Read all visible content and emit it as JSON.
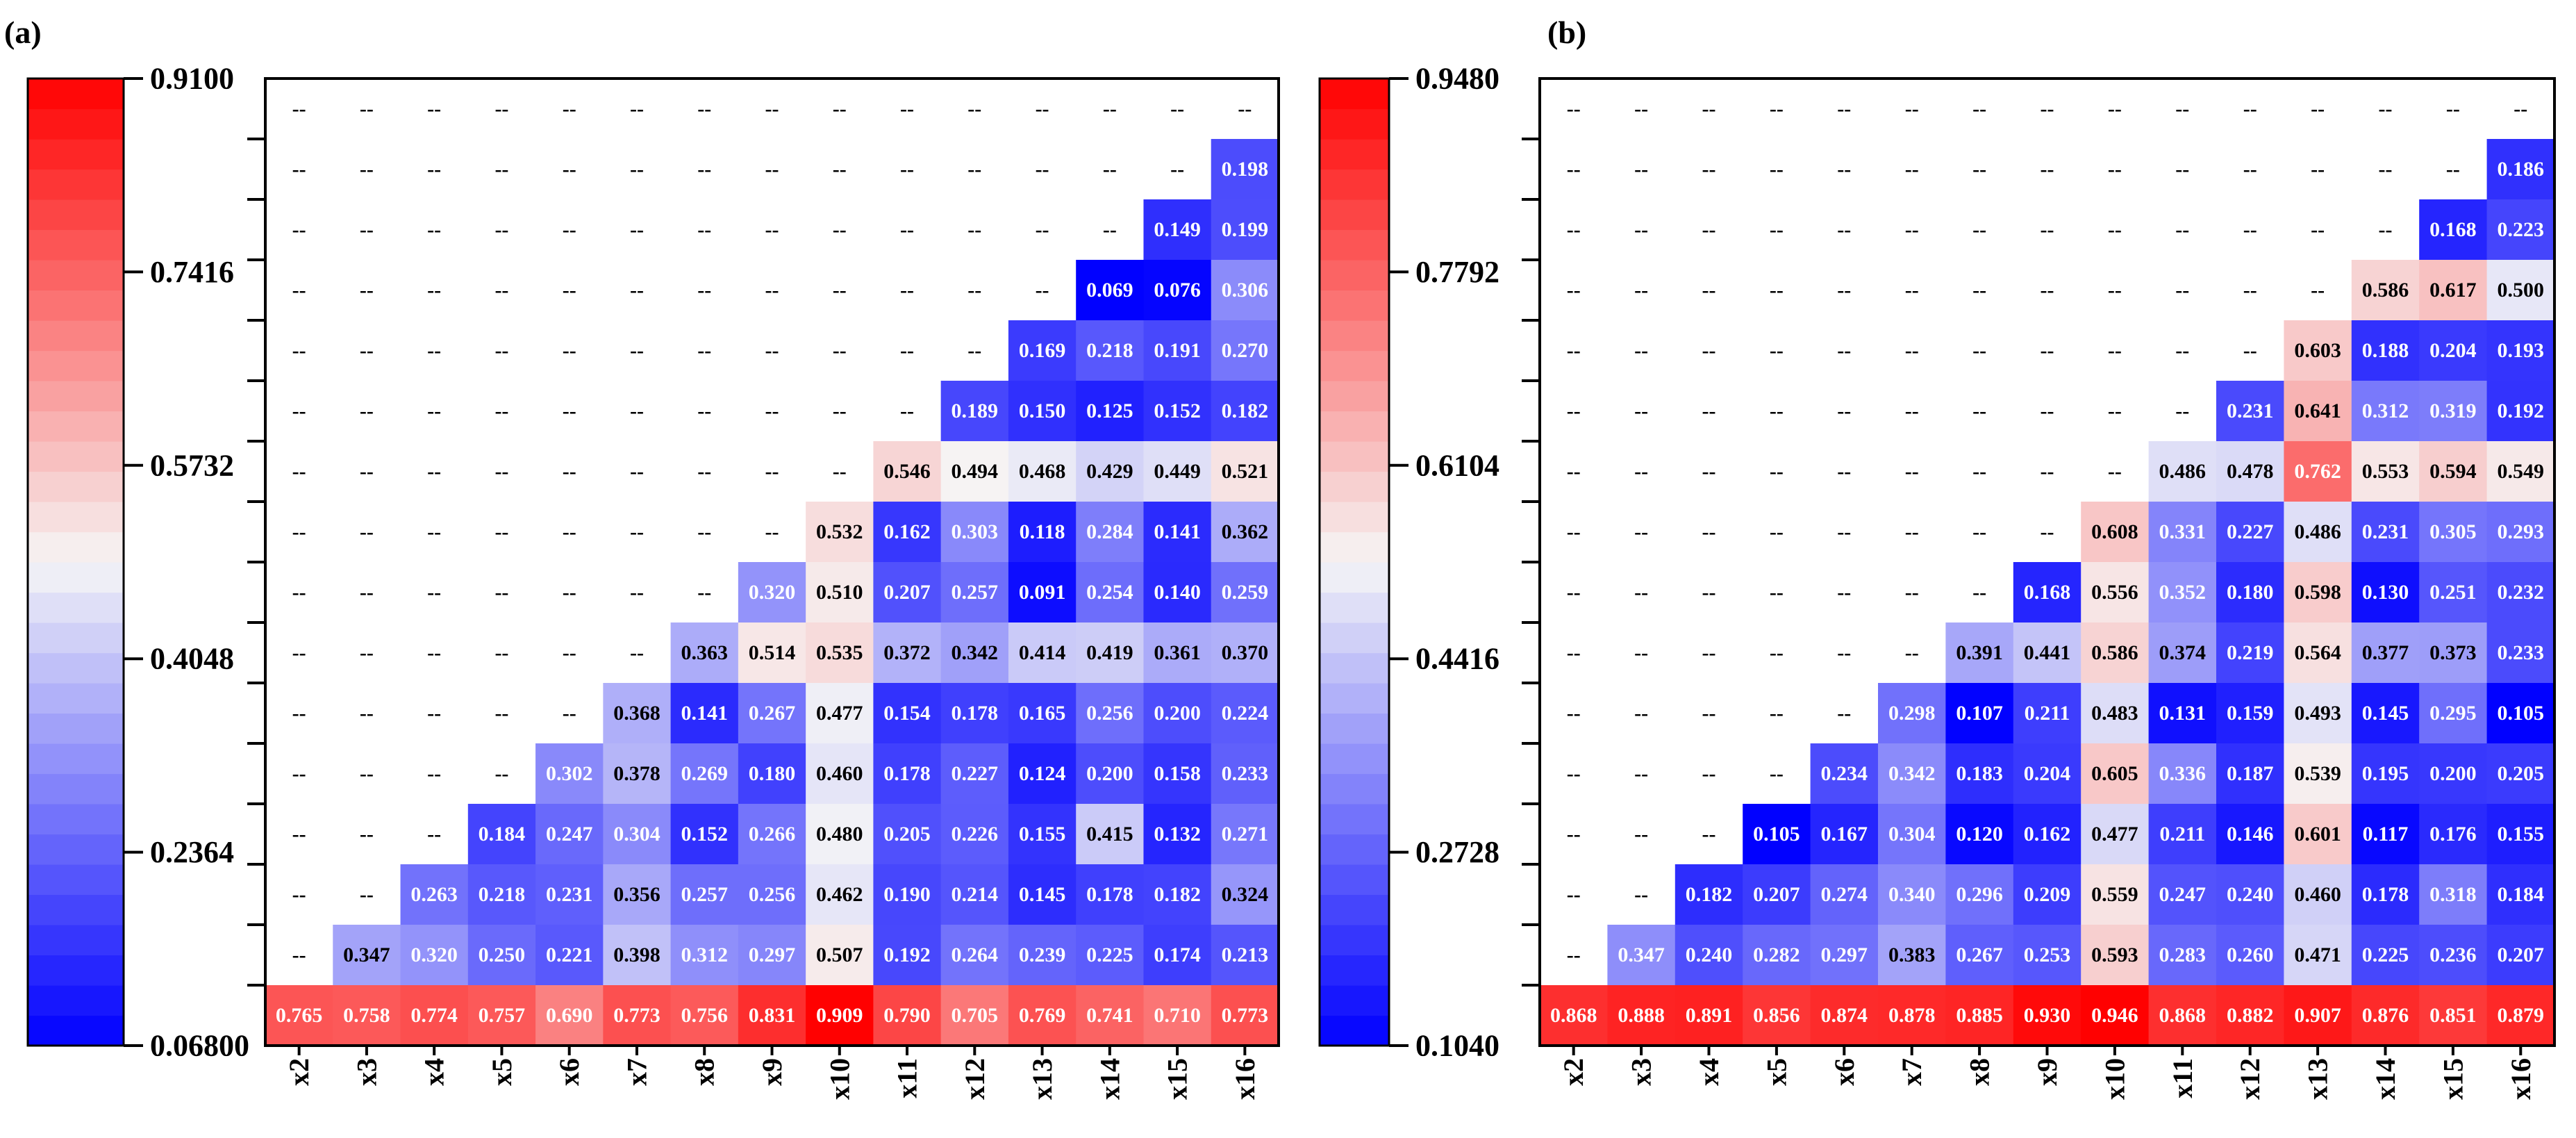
{
  "chart_data": [
    {
      "type": "heatmap",
      "panel_label": "(a)",
      "colorbar": {
        "min": 0.068,
        "max": 0.91,
        "ticks": [
          "0.06800",
          "0.2364",
          "0.4048",
          "0.5732",
          "0.7416",
          "0.9100"
        ]
      },
      "columns": [
        "x2",
        "x3",
        "x4",
        "x5",
        "x6",
        "x7",
        "x8",
        "x9",
        "x10",
        "x11",
        "x12",
        "x13",
        "x14",
        "x15",
        "x16"
      ],
      "rows": [
        [
          "--",
          "--",
          "--",
          "--",
          "--",
          "--",
          "--",
          "--",
          "--",
          "--",
          "--",
          "--",
          "--",
          "--",
          "--"
        ],
        [
          "--",
          "--",
          "--",
          "--",
          "--",
          "--",
          "--",
          "--",
          "--",
          "--",
          "--",
          "--",
          "--",
          "--",
          "0.198"
        ],
        [
          "--",
          "--",
          "--",
          "--",
          "--",
          "--",
          "--",
          "--",
          "--",
          "--",
          "--",
          "--",
          "--",
          "0.149",
          "0.199"
        ],
        [
          "--",
          "--",
          "--",
          "--",
          "--",
          "--",
          "--",
          "--",
          "--",
          "--",
          "--",
          "--",
          "0.069",
          "0.076",
          "0.306"
        ],
        [
          "--",
          "--",
          "--",
          "--",
          "--",
          "--",
          "--",
          "--",
          "--",
          "--",
          "--",
          "0.169",
          "0.218",
          "0.191",
          "0.270"
        ],
        [
          "--",
          "--",
          "--",
          "--",
          "--",
          "--",
          "--",
          "--",
          "--",
          "--",
          "0.189",
          "0.150",
          "0.125",
          "0.152",
          "0.182"
        ],
        [
          "--",
          "--",
          "--",
          "--",
          "--",
          "--",
          "--",
          "--",
          "--",
          "0.546",
          "0.494",
          "0.468",
          "0.429",
          "0.449",
          "0.521"
        ],
        [
          "--",
          "--",
          "--",
          "--",
          "--",
          "--",
          "--",
          "--",
          "0.532",
          "0.162",
          "0.303",
          "0.118",
          "0.284",
          "0.141",
          "0.362"
        ],
        [
          "--",
          "--",
          "--",
          "--",
          "--",
          "--",
          "--",
          "0.320",
          "0.510",
          "0.207",
          "0.257",
          "0.091",
          "0.254",
          "0.140",
          "0.259"
        ],
        [
          "--",
          "--",
          "--",
          "--",
          "--",
          "--",
          "0.363",
          "0.514",
          "0.535",
          "0.372",
          "0.342",
          "0.414",
          "0.419",
          "0.361",
          "0.370"
        ],
        [
          "--",
          "--",
          "--",
          "--",
          "--",
          "0.368",
          "0.141",
          "0.267",
          "0.477",
          "0.154",
          "0.178",
          "0.165",
          "0.256",
          "0.200",
          "0.224"
        ],
        [
          "--",
          "--",
          "--",
          "--",
          "0.302",
          "0.378",
          "0.269",
          "0.180",
          "0.460",
          "0.178",
          "0.227",
          "0.124",
          "0.200",
          "0.158",
          "0.233"
        ],
        [
          "--",
          "--",
          "--",
          "0.184",
          "0.247",
          "0.304",
          "0.152",
          "0.266",
          "0.480",
          "0.205",
          "0.226",
          "0.155",
          "0.415",
          "0.132",
          "0.271"
        ],
        [
          "--",
          "--",
          "0.263",
          "0.218",
          "0.231",
          "0.356",
          "0.257",
          "0.256",
          "0.462",
          "0.190",
          "0.214",
          "0.145",
          "0.178",
          "0.182",
          "0.324"
        ],
        [
          "--",
          "0.347",
          "0.320",
          "0.250",
          "0.221",
          "0.398",
          "0.312",
          "0.297",
          "0.507",
          "0.192",
          "0.264",
          "0.239",
          "0.225",
          "0.174",
          "0.213"
        ],
        [
          "0.765",
          "0.758",
          "0.774",
          "0.757",
          "0.690",
          "0.773",
          "0.756",
          "0.831",
          "0.909",
          "0.790",
          "0.705",
          "0.769",
          "0.741",
          "0.710",
          "0.773"
        ]
      ]
    },
    {
      "type": "heatmap",
      "panel_label": "(b)",
      "colorbar": {
        "min": 0.104,
        "max": 0.948,
        "ticks": [
          "0.1040",
          "0.2728",
          "0.4416",
          "0.6104",
          "0.7792",
          "0.9480"
        ]
      },
      "columns": [
        "x2",
        "x3",
        "x4",
        "x5",
        "x6",
        "x7",
        "x8",
        "x9",
        "x10",
        "x11",
        "x12",
        "x13",
        "x14",
        "x15",
        "x16"
      ],
      "rows": [
        [
          "--",
          "--",
          "--",
          "--",
          "--",
          "--",
          "--",
          "--",
          "--",
          "--",
          "--",
          "--",
          "--",
          "--",
          "--"
        ],
        [
          "--",
          "--",
          "--",
          "--",
          "--",
          "--",
          "--",
          "--",
          "--",
          "--",
          "--",
          "--",
          "--",
          "--",
          "0.186"
        ],
        [
          "--",
          "--",
          "--",
          "--",
          "--",
          "--",
          "--",
          "--",
          "--",
          "--",
          "--",
          "--",
          "--",
          "0.168",
          "0.223"
        ],
        [
          "--",
          "--",
          "--",
          "--",
          "--",
          "--",
          "--",
          "--",
          "--",
          "--",
          "--",
          "--",
          "0.586",
          "0.617",
          "0.500"
        ],
        [
          "--",
          "--",
          "--",
          "--",
          "--",
          "--",
          "--",
          "--",
          "--",
          "--",
          "--",
          "0.603",
          "0.188",
          "0.204",
          "0.193"
        ],
        [
          "--",
          "--",
          "--",
          "--",
          "--",
          "--",
          "--",
          "--",
          "--",
          "--",
          "0.231",
          "0.641",
          "0.312",
          "0.319",
          "0.192"
        ],
        [
          "--",
          "--",
          "--",
          "--",
          "--",
          "--",
          "--",
          "--",
          "--",
          "0.486",
          "0.478",
          "0.762",
          "0.553",
          "0.594",
          "0.549"
        ],
        [
          "--",
          "--",
          "--",
          "--",
          "--",
          "--",
          "--",
          "--",
          "0.608",
          "0.331",
          "0.227",
          "0.486",
          "0.231",
          "0.305",
          "0.293"
        ],
        [
          "--",
          "--",
          "--",
          "--",
          "--",
          "--",
          "--",
          "0.168",
          "0.556",
          "0.352",
          "0.180",
          "0.598",
          "0.130",
          "0.251",
          "0.232"
        ],
        [
          "--",
          "--",
          "--",
          "--",
          "--",
          "--",
          "0.391",
          "0.441",
          "0.586",
          "0.374",
          "0.219",
          "0.564",
          "0.377",
          "0.373",
          "0.233"
        ],
        [
          "--",
          "--",
          "--",
          "--",
          "--",
          "0.298",
          "0.107",
          "0.211",
          "0.483",
          "0.131",
          "0.159",
          "0.493",
          "0.145",
          "0.295",
          "0.105"
        ],
        [
          "--",
          "--",
          "--",
          "--",
          "0.234",
          "0.342",
          "0.183",
          "0.204",
          "0.605",
          "0.336",
          "0.187",
          "0.539",
          "0.195",
          "0.200",
          "0.205"
        ],
        [
          "--",
          "--",
          "--",
          "0.105",
          "0.167",
          "0.304",
          "0.120",
          "0.162",
          "0.477",
          "0.211",
          "0.146",
          "0.601",
          "0.117",
          "0.176",
          "0.155"
        ],
        [
          "--",
          "--",
          "0.182",
          "0.207",
          "0.274",
          "0.340",
          "0.296",
          "0.209",
          "0.559",
          "0.247",
          "0.240",
          "0.460",
          "0.178",
          "0.318",
          "0.184"
        ],
        [
          "--",
          "0.347",
          "0.240",
          "0.282",
          "0.297",
          "0.383",
          "0.267",
          "0.253",
          "0.593",
          "0.283",
          "0.260",
          "0.471",
          "0.225",
          "0.236",
          "0.207"
        ],
        [
          "0.868",
          "0.888",
          "0.891",
          "0.856",
          "0.874",
          "0.878",
          "0.885",
          "0.930",
          "0.946",
          "0.868",
          "0.882",
          "0.907",
          "0.876",
          "0.851",
          "0.879"
        ]
      ]
    }
  ]
}
